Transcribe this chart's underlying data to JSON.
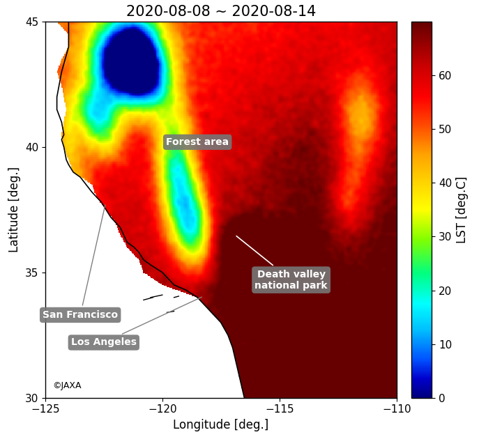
{
  "title": "2020-08-08 ~ 2020-08-14",
  "xlabel": "Longitude [deg.]",
  "ylabel": "Latitude [deg.]",
  "colorbar_label": "LST [deg.C]",
  "lon_min": -125,
  "lon_max": -110,
  "lat_min": 30,
  "lat_max": 45,
  "lst_min": 0,
  "lst_max": 70,
  "colorbar_ticks": [
    0,
    10,
    20,
    30,
    40,
    50,
    60
  ],
  "sf_lon": -122.42,
  "sf_lat": 37.77,
  "sf_text_lon": -123.5,
  "sf_text_lat": 33.3,
  "la_lon": -118.24,
  "la_lat": 34.05,
  "la_text_lon": -122.5,
  "la_text_lat": 32.2,
  "dv_point_lon": -116.9,
  "dv_point_lat": 36.5,
  "dv_text_lon": -114.5,
  "dv_text_lat": 34.7,
  "forest_text_lon": -118.5,
  "forest_text_lat": 40.2,
  "copyright": "©JAXA",
  "annotation_box_color": "#777777",
  "annotation_text_color": "white",
  "title_fontsize": 15,
  "label_fontsize": 12,
  "tick_fontsize": 11,
  "colorbar_tick_fontsize": 11,
  "annotation_fontsize": 10,
  "coast_color": "black",
  "coast_linewidth": 1.2,
  "xticks": [
    -125,
    -120,
    -115,
    -110
  ],
  "yticks": [
    30,
    35,
    40,
    45
  ],
  "base_temp": 50,
  "seed": 1234
}
